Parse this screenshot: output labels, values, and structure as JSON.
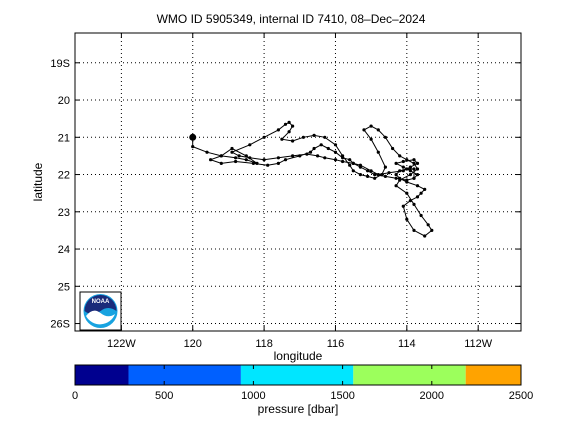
{
  "chart_data": [
    {
      "type": "line",
      "title": "WMO ID 5905349, internal ID 7410, 08–Dec–2024",
      "xlabel": "longitude",
      "ylabel": "latitude",
      "xlim": [
        -123.3,
        -110.8
      ],
      "ylim": [
        -26.2,
        -18.2
      ],
      "grid": true,
      "xticks": [
        {
          "value": -122,
          "label": "122W"
        },
        {
          "value": -120,
          "label": "120"
        },
        {
          "value": -118,
          "label": "118"
        },
        {
          "value": -116,
          "label": "116"
        },
        {
          "value": -114,
          "label": "114"
        },
        {
          "value": -112,
          "label": "112W"
        }
      ],
      "yticks": [
        {
          "value": -19,
          "label": "19S"
        },
        {
          "value": -20,
          "label": "20"
        },
        {
          "value": -21,
          "label": "21"
        },
        {
          "value": -22,
          "label": "22"
        },
        {
          "value": -23,
          "label": "23"
        },
        {
          "value": -24,
          "label": "24"
        },
        {
          "value": -25,
          "label": "25"
        },
        {
          "value": -26,
          "label": "26S"
        }
      ],
      "series": [
        {
          "x": [
            -120,
            -120,
            -119.6,
            -119.2,
            -118.8,
            -118.5,
            -118.2,
            -118.5,
            -118.9,
            -119.2,
            -119.5,
            -119.2,
            -118.8,
            -118.3,
            -117.9,
            -117.6,
            -117.4,
            -117.0,
            -116.7,
            -116.6,
            -116.4,
            -116.2,
            -116.0,
            -115.8,
            -115.6,
            -115.5,
            -115.3,
            -115.1,
            -114.9,
            -114.6,
            -114.3,
            -114.0,
            -113.8,
            -113.7,
            -113.9,
            -114.1,
            -114.3,
            -114.1,
            -113.8,
            -113.7,
            -113.9,
            -114.1,
            -114.5,
            -114.8,
            -115.0,
            -115.3,
            -115.5,
            -115.8,
            -116.0,
            -116.3,
            -116.5,
            -116.8,
            -117.2,
            -117.6,
            -118.0,
            -118.4,
            -118.7,
            -118.9,
            -118.4,
            -118.0,
            -117.6,
            -117.4,
            -117.3,
            -117.2,
            -117.3,
            -117.5,
            -117.2,
            -116.9,
            -116.6,
            -116.3,
            -116.0,
            -115.8,
            -115.6,
            -115.5,
            -115.3,
            -115.1,
            -114.9,
            -114.7,
            -114.6,
            -114.8,
            -115.0,
            -115.2,
            -115.0,
            -114.8,
            -114.6,
            -114.4,
            -114.2,
            -114.0,
            -113.8,
            -113.7,
            -113.9,
            -114.2,
            -114.3,
            -114.0,
            -113.8,
            -113.6,
            -113.4,
            -113.3,
            -113.5,
            -113.8,
            -114.0,
            -114.1,
            -113.9,
            -113.7,
            -113.6,
            -113.5,
            -113.7,
            -114.0,
            -114.2,
            -114.3,
            -114.2,
            -114.0,
            -113.8,
            -113.8
          ],
          "y": [
            -21,
            -21.25,
            -21.4,
            -21.5,
            -21.55,
            -21.6,
            -21.7,
            -21.5,
            -21.3,
            -21.5,
            -21.6,
            -21.7,
            -21.65,
            -21.7,
            -21.75,
            -21.7,
            -21.6,
            -21.5,
            -21.4,
            -21.3,
            -21.2,
            -21.3,
            -21.4,
            -21.55,
            -21.6,
            -21.7,
            -21.8,
            -21.9,
            -22.0,
            -22.05,
            -22.1,
            -22.15,
            -22.1,
            -22.0,
            -21.9,
            -21.8,
            -21.7,
            -21.65,
            -21.6,
            -21.7,
            -21.8,
            -21.9,
            -21.95,
            -22.0,
            -21.9,
            -21.75,
            -21.7,
            -21.65,
            -21.6,
            -21.55,
            -21.5,
            -21.45,
            -21.5,
            -21.55,
            -21.6,
            -21.55,
            -21.5,
            -21.4,
            -21.2,
            -21.0,
            -20.8,
            -20.65,
            -20.6,
            -20.7,
            -20.85,
            -21.05,
            -21.1,
            -21.0,
            -20.95,
            -21.0,
            -21.2,
            -21.5,
            -21.75,
            -21.9,
            -22.0,
            -22.05,
            -22.1,
            -22.0,
            -21.8,
            -21.4,
            -21.05,
            -20.8,
            -20.7,
            -20.8,
            -21.0,
            -21.3,
            -21.5,
            -21.6,
            -21.7,
            -21.85,
            -22.0,
            -22.15,
            -22.3,
            -22.5,
            -22.8,
            -23.1,
            -23.35,
            -23.5,
            -23.65,
            -23.5,
            -23.2,
            -22.85,
            -22.7,
            -22.6,
            -22.5,
            -22.4,
            -22.3,
            -22.2,
            -22.1,
            -22.0,
            -21.9,
            -21.85,
            -21.85,
            -22.1
          ]
        }
      ],
      "start_marker": {
        "x": -120,
        "y": -21
      },
      "colorbar": {
        "label": "pressure [dbar]",
        "ticks": [
          0,
          500,
          1000,
          1500,
          2000,
          2500
        ],
        "tick_labels": [
          "0",
          "500",
          "1000",
          "1500",
          "2000",
          "2500"
        ],
        "range": [
          0,
          2500
        ],
        "bands": [
          {
            "from": 0,
            "to": 300,
            "color": "#00008f"
          },
          {
            "from": 300,
            "to": 930,
            "color": "#0060ff"
          },
          {
            "from": 930,
            "to": 1560,
            "color": "#00e6ff"
          },
          {
            "from": 1560,
            "to": 2190,
            "color": "#9cff5c"
          },
          {
            "from": 2190,
            "to": 2500,
            "color": "#ffa300"
          }
        ]
      }
    }
  ],
  "logo": {
    "text": "NOAA",
    "colors": {
      "navy": "#1a2b7a",
      "cyan": "#18a3e0"
    }
  }
}
